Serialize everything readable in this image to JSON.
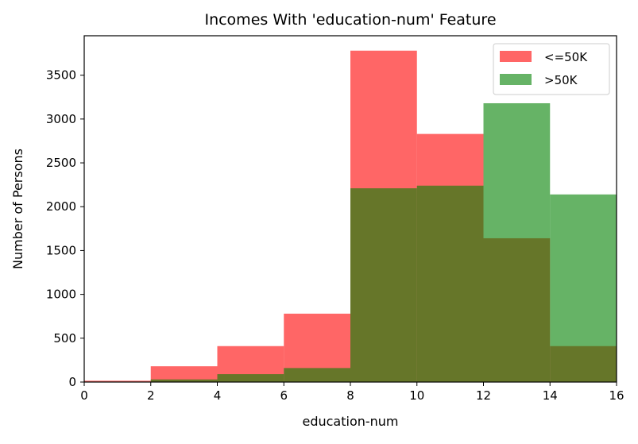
{
  "chart_data": {
    "type": "bar",
    "title": "Incomes With 'education-num' Feature",
    "xlabel": "education-num",
    "ylabel": "Number of Persons",
    "xlim": [
      0,
      16
    ],
    "ylim": [
      0,
      3950
    ],
    "xticks": [
      "0",
      "2",
      "4",
      "6",
      "8",
      "10",
      "12",
      "14",
      "16"
    ],
    "yticks": [
      "0",
      "500",
      "1000",
      "1500",
      "2000",
      "2500",
      "3000",
      "3500"
    ],
    "bins": [
      [
        0,
        2
      ],
      [
        2,
        4
      ],
      [
        4,
        6
      ],
      [
        6,
        8
      ],
      [
        8,
        10
      ],
      [
        10,
        12
      ],
      [
        12,
        14
      ],
      [
        14,
        16
      ]
    ],
    "series": [
      {
        "name": "<=50K",
        "color": "#ff0000",
        "opacity": 0.6,
        "values": [
          15,
          180,
          410,
          780,
          3780,
          2830,
          1640,
          410
        ]
      },
      {
        "name": ">50K",
        "color": "#008000",
        "opacity": 0.6,
        "values": [
          5,
          30,
          90,
          160,
          2210,
          2240,
          3180,
          2140
        ]
      }
    ],
    "grid": false,
    "legend": "top-right"
  }
}
